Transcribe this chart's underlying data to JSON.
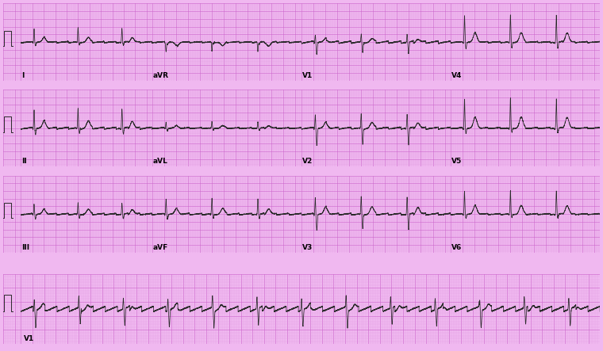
{
  "bg_color": "#f0b8f0",
  "grid_minor_color": "#e09ae0",
  "grid_major_color": "#cc66cc",
  "line_color": "#2a2a2a",
  "fig_width": 7.6,
  "fig_height": 4.43,
  "dpi": 100,
  "leads_row1": [
    "I",
    "aVR",
    "V1",
    "V4"
  ],
  "leads_row2": [
    "II",
    "aVL",
    "V2",
    "V5"
  ],
  "leads_row3": [
    "III",
    "aVF",
    "V3",
    "V6"
  ],
  "rhythm_lead": "V1",
  "heart_rate": 78
}
